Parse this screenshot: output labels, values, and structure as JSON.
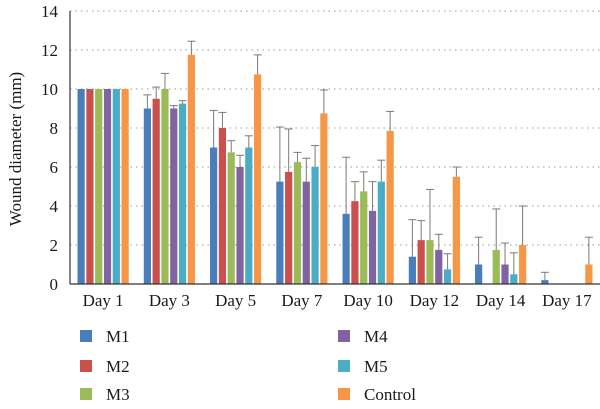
{
  "chart_data": {
    "type": "bar",
    "title": "",
    "xlabel": "",
    "ylabel": "Wound diameter (mm)",
    "ylim": [
      0,
      14
    ],
    "yticks": [
      0,
      2,
      4,
      6,
      8,
      10,
      12,
      14
    ],
    "grid": true,
    "legend_position": "bottom",
    "categories": [
      "Day 1",
      "Day 3",
      "Day 5",
      "Day 7",
      "Day 10",
      "Day 12",
      "Day 14",
      "Day 17"
    ],
    "series": [
      {
        "name": "M1",
        "color": "#4a7ebb",
        "values": [
          10,
          9.0,
          7.0,
          5.25,
          3.6,
          1.4,
          1.0,
          0.2
        ],
        "errors": [
          0,
          0.7,
          1.9,
          2.8,
          2.9,
          1.9,
          1.4,
          0.4
        ]
      },
      {
        "name": "M2",
        "color": "#c9504d",
        "values": [
          10,
          9.5,
          8.0,
          5.75,
          4.25,
          2.25,
          0,
          0
        ],
        "errors": [
          0,
          0.6,
          0.8,
          2.2,
          1.0,
          1.0,
          0,
          0
        ]
      },
      {
        "name": "M3",
        "color": "#9bbb59",
        "values": [
          10,
          10.0,
          6.75,
          6.25,
          4.75,
          2.25,
          1.75,
          0
        ],
        "errors": [
          0,
          0.8,
          0.6,
          0.5,
          1.0,
          2.6,
          2.1,
          0
        ]
      },
      {
        "name": "M4",
        "color": "#8064a2",
        "values": [
          10,
          9.0,
          6.0,
          5.25,
          3.75,
          1.75,
          1.0,
          0
        ],
        "errors": [
          0,
          0.15,
          0.6,
          1.2,
          1.5,
          0.8,
          1.1,
          0
        ]
      },
      {
        "name": "M5",
        "color": "#4bacc6",
        "values": [
          10,
          9.25,
          7.0,
          6.0,
          5.25,
          0.75,
          0.5,
          0
        ],
        "errors": [
          0,
          0.15,
          0.6,
          1.1,
          1.1,
          0.8,
          1.1,
          0
        ]
      },
      {
        "name": "Control",
        "color": "#f79646",
        "values": [
          10,
          11.75,
          10.75,
          8.75,
          7.85,
          5.5,
          2.0,
          1.0
        ],
        "errors": [
          0,
          0.7,
          1.0,
          1.2,
          1.0,
          0.5,
          2.0,
          1.4
        ]
      }
    ]
  }
}
